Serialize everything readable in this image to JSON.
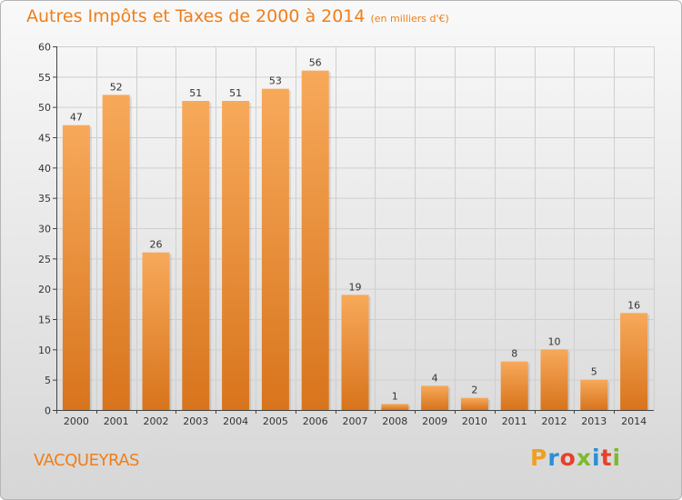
{
  "title": "Autres Impôts et Taxes de 2000 à 2014",
  "unit": "(en milliers d'€)",
  "commune": "VACQUEYRAS",
  "logo": {
    "text": "Proxiti",
    "colors": [
      "#f0a020",
      "#2a8fd6",
      "#e8402a",
      "#7dba2e",
      "#2a8fd6",
      "#e8402a",
      "#7dba2e"
    ]
  },
  "colors": {
    "bar_light": "#f7a95a",
    "bar_dark": "#d8741c",
    "accent": "#f07e1a"
  },
  "chart_data": {
    "type": "bar",
    "categories": [
      "2000",
      "2001",
      "2002",
      "2003",
      "2004",
      "2005",
      "2006",
      "2007",
      "2008",
      "2009",
      "2010",
      "2011",
      "2012",
      "2013",
      "2014"
    ],
    "values": [
      47,
      52,
      26,
      51,
      51,
      53,
      56,
      19,
      1,
      4,
      2,
      8,
      10,
      5,
      16
    ],
    "ylim": [
      0,
      60
    ],
    "yticks": [
      0,
      5,
      10,
      15,
      20,
      25,
      30,
      35,
      40,
      45,
      50,
      55,
      60
    ],
    "grid": true
  }
}
